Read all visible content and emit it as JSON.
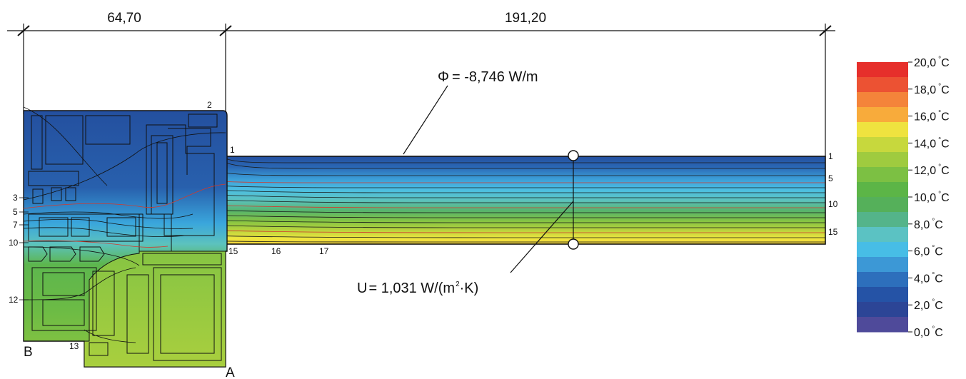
{
  "dimensions": {
    "left": "64,70",
    "right": "191,20"
  },
  "annotations": {
    "phi_symbol": "Φ",
    "phi_value": "= -8,746 W/m",
    "u_letter": "U",
    "u_value_prefix": "= 1,031 W/(m",
    "u_value_exp": "2",
    "u_value_suffix": "·K)"
  },
  "section_labels": {
    "a": "A",
    "b": "B"
  },
  "point_labels": {
    "left": [
      "3",
      "5",
      "7",
      "10",
      "12"
    ],
    "top": [
      "2",
      "1"
    ],
    "bottom": [
      "13",
      "15",
      "16",
      "17"
    ],
    "right": [
      "1",
      "5",
      "10",
      "15"
    ]
  },
  "legend": {
    "unit_degree": "°",
    "unit_letter": "C",
    "ticks": [
      "20,0",
      "18,0",
      "16,0",
      "14,0",
      "12,0",
      "10,0",
      "8,0",
      "6,0",
      "4,0",
      "2,0",
      "0,0"
    ],
    "colors": [
      "#e62f2b",
      "#ec5233",
      "#f4843a",
      "#f8ab3b",
      "#efe33f",
      "#c7d83d",
      "#9fcb3f",
      "#7cc043",
      "#5cb547",
      "#55b05a",
      "#54b48a",
      "#5bc2c3",
      "#47bde6",
      "#3c98d6",
      "#2d6fbc",
      "#2553a6",
      "#2c4596",
      "#4f4a9a"
    ]
  }
}
